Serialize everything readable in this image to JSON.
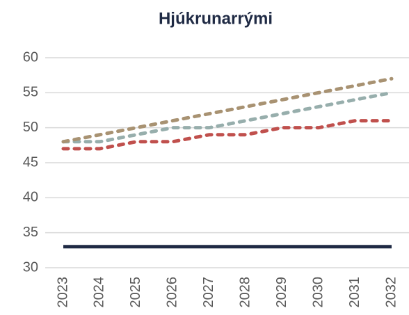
{
  "chart_data": {
    "type": "line",
    "title": "Hjúkrunarrými",
    "categories": [
      "2023",
      "2024",
      "2025",
      "2026",
      "2027",
      "2028",
      "2029",
      "2030",
      "2031",
      "2032"
    ],
    "series": [
      {
        "color": "#1f2a44",
        "dashed": false,
        "values": [
          33,
          33,
          33,
          33,
          33,
          33,
          33,
          33,
          33,
          33
        ]
      },
      {
        "color": "#c0504d",
        "dashed": true,
        "values": [
          47,
          47,
          48,
          48,
          49,
          49,
          50,
          50,
          51,
          51
        ]
      },
      {
        "color": "#97aeac",
        "dashed": true,
        "values": [
          48,
          48,
          49,
          50,
          50,
          51,
          52,
          53,
          54,
          55
        ]
      },
      {
        "color": "#a89272",
        "dashed": true,
        "values": [
          48,
          49,
          50,
          51,
          52,
          53,
          54,
          55,
          56,
          57
        ]
      }
    ],
    "ylim": [
      30,
      60
    ],
    "yticks": [
      30,
      35,
      40,
      45,
      50,
      55,
      60
    ],
    "grid": true
  }
}
